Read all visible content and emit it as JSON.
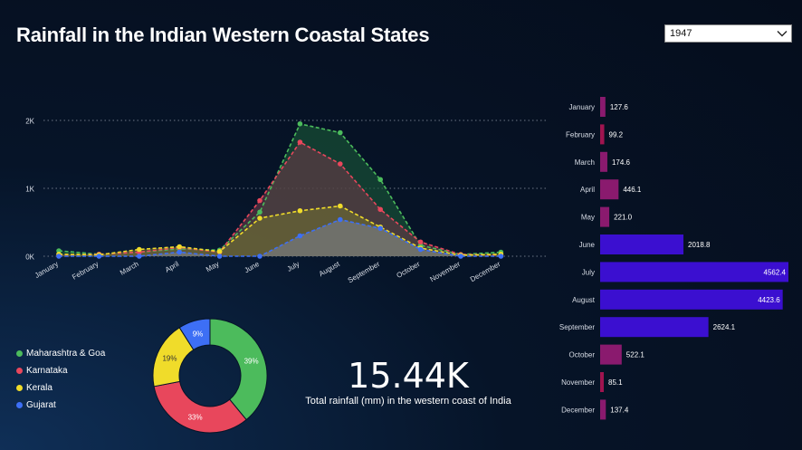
{
  "title": "Rainfall in the Indian Western Coastal States",
  "filter": {
    "selected": "1947"
  },
  "kpi": {
    "value": "15.44K",
    "label": "Total rainfall (mm) in the western coast of India"
  },
  "colors": {
    "maharashtra": "#4cbb5c",
    "karnataka": "#e8475c",
    "kerala": "#f0dc2a",
    "gujarat": "#3d6ff5"
  },
  "chart_data": [
    {
      "type": "area",
      "categories": [
        "January",
        "February",
        "March",
        "April",
        "May",
        "June",
        "July",
        "August",
        "September",
        "October",
        "November",
        "December"
      ],
      "ylim": [
        0,
        2000
      ],
      "yticks": [
        {
          "v": 0,
          "label": "0K"
        },
        {
          "v": 1000,
          "label": "1K"
        },
        {
          "v": 2000,
          "label": "2K"
        }
      ],
      "grid": true,
      "series": [
        {
          "name": "Maharashtra & Goa",
          "color": "#4cbb5c",
          "fill": "#1a5a38",
          "values": [
            80,
            30,
            60,
            110,
            90,
            650,
            1950,
            1820,
            1130,
            160,
            25,
            60
          ]
        },
        {
          "name": "Karnataka",
          "color": "#e8475c",
          "fill": "#6a3a48",
          "values": [
            20,
            30,
            60,
            130,
            60,
            820,
            1680,
            1360,
            690,
            210,
            25,
            20
          ]
        },
        {
          "name": "Kerala",
          "color": "#f0dc2a",
          "fill": "#6f6f32",
          "values": [
            30,
            20,
            100,
            140,
            70,
            560,
            670,
            740,
            430,
            120,
            15,
            30
          ]
        },
        {
          "name": "Gujarat",
          "color": "#3d6ff5",
          "fill": "#7a7f8c",
          "values": [
            0,
            0,
            0,
            60,
            0,
            0,
            300,
            540,
            410,
            100,
            0,
            0
          ]
        }
      ]
    },
    {
      "type": "bar",
      "orientation": "horizontal",
      "categories": [
        "January",
        "February",
        "March",
        "April",
        "May",
        "June",
        "July",
        "August",
        "September",
        "October",
        "November",
        "December"
      ],
      "values": [
        127.6,
        99.2,
        174.6,
        446.1,
        221.0,
        2018.8,
        4562.4,
        4423.6,
        2624.1,
        522.1,
        85.1,
        137.4
      ],
      "labels": [
        "127.6",
        "99.2",
        "174.6",
        "446.1",
        "221.0",
        "2018.8",
        "4562.4",
        "4423.6",
        "2624.1",
        "522.1",
        "85.1",
        "137.4"
      ],
      "colors": [
        "#8a1a6e",
        "#a0144f",
        "#8a1a6e",
        "#8a1a6e",
        "#8a1a6e",
        "#3b0fd0",
        "#3b0fd0",
        "#3b0fd0",
        "#3b0fd0",
        "#8a1a6e",
        "#a0144f",
        "#8a1a6e"
      ]
    },
    {
      "type": "pie",
      "categories": [
        "Maharashtra & Goa",
        "Karnataka",
        "Kerala",
        "Gujarat"
      ],
      "values": [
        39,
        33,
        19,
        9
      ],
      "labels": [
        "39%",
        "33%",
        "19%",
        "9%"
      ],
      "colors": [
        "#4cbb5c",
        "#e8475c",
        "#f0dc2a",
        "#3d6ff5"
      ]
    }
  ]
}
